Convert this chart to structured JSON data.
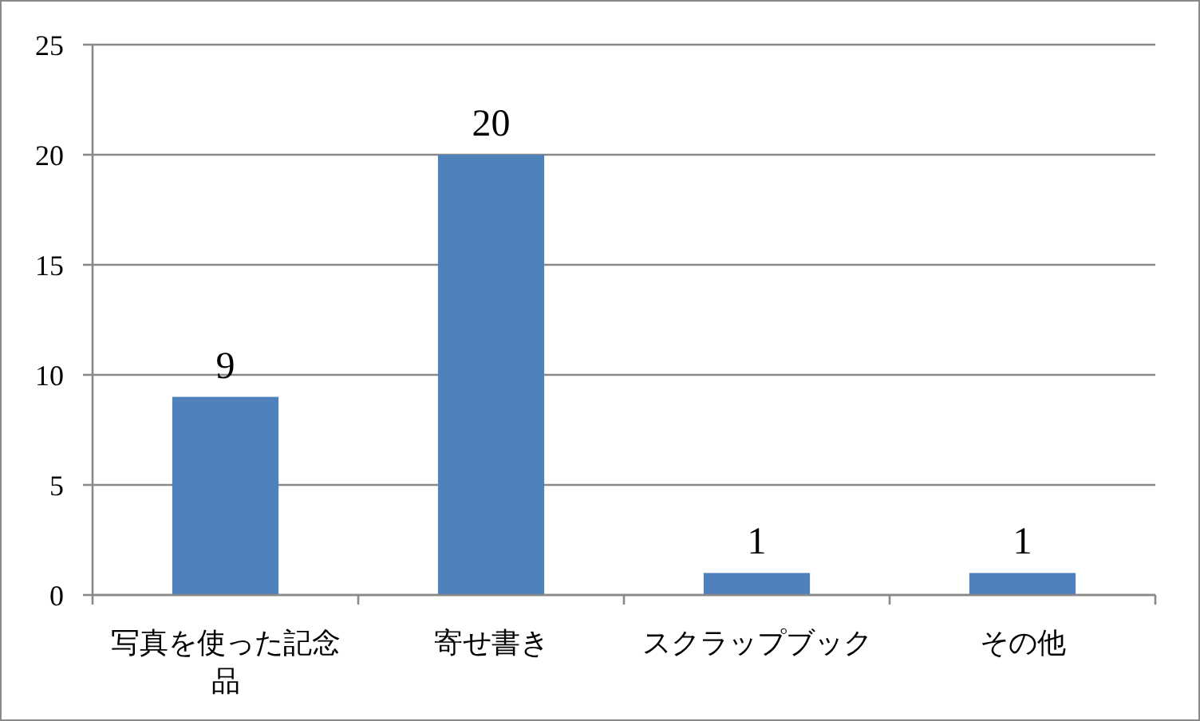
{
  "chart_data": {
    "type": "bar",
    "categories": [
      "写真を使った記念品",
      "寄せ書き",
      "スクラップブック",
      "その他"
    ],
    "values": [
      9,
      20,
      1,
      1
    ],
    "color": "#4f81bd",
    "ylim": [
      0,
      25
    ],
    "yticks": [
      0,
      5,
      10,
      15,
      20,
      25
    ],
    "grid": "y",
    "data_labels": true
  }
}
